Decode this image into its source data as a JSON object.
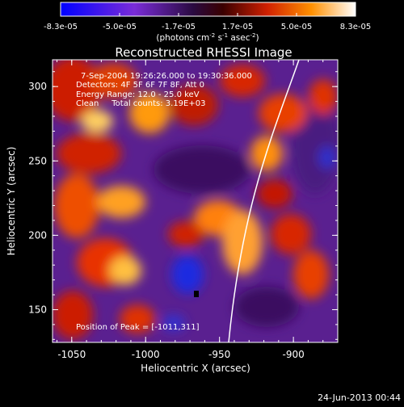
{
  "colorbar": {
    "tick_labels": [
      "-8.3e-05",
      "-5.0e-05",
      "-1.7e-05",
      "1.7e-05",
      "5.0e-05",
      "8.3e-05"
    ],
    "unit_prefix": "(photons cm",
    "unit_exp1": "-2",
    "unit_mid": " s",
    "unit_exp2": "-1",
    "unit_mid2": " asec",
    "unit_exp3": "-2",
    "unit_suffix": ")"
  },
  "title": "Reconstructed RHESSI Image",
  "info": {
    "time_range": "7-Sep-2004 19:26:26.000 to 19:30:36.000",
    "detectors": "Detectors: 4F 5F 6F 7F 8F, Att 0",
    "energy": "Energy Range: 12.0 - 25.0 keV",
    "clean": "Clean     Total counts: 3.19E+03"
  },
  "peak_text": "Position of Peak = [-1011,311]",
  "xaxis": {
    "label": "Heliocentric X (arcsec)",
    "ticks": [
      {
        "label": "-1050",
        "value": -1050
      },
      {
        "label": "-1000",
        "value": -1000
      },
      {
        "label": "-950",
        "value": -950
      },
      {
        "label": "-900",
        "value": -900
      }
    ],
    "range": [
      -1063,
      -870
    ]
  },
  "yaxis": {
    "label": "Heliocentric Y (arcsec)",
    "ticks": [
      {
        "label": "150",
        "value": 150
      },
      {
        "label": "200",
        "value": 200
      },
      {
        "label": "250",
        "value": 250
      },
      {
        "label": "300",
        "value": 300
      }
    ],
    "range": [
      128,
      318
    ]
  },
  "timestamp": "24-Jun-2013 00:44"
}
